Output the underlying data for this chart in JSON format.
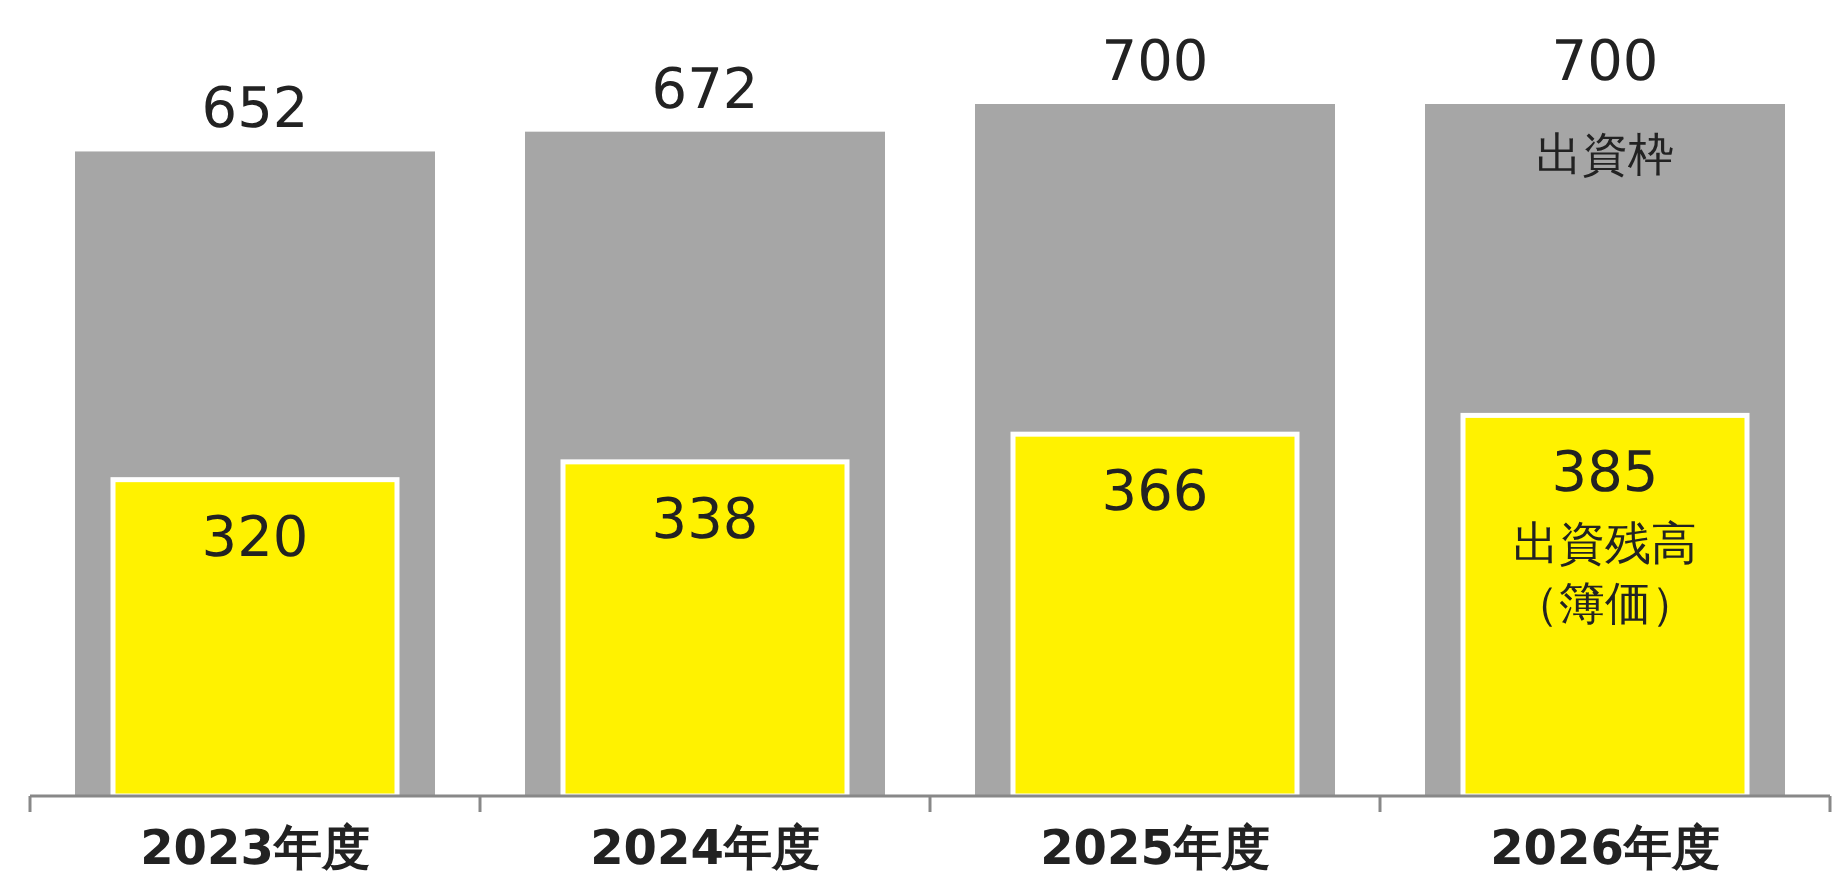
{
  "chart_data": {
    "type": "bar",
    "categories": [
      "2023年度",
      "2024年度",
      "2025年度",
      "2026年度"
    ],
    "series": [
      {
        "name": "出資枠",
        "color": "#a6a6a6",
        "values": [
          652,
          672,
          700,
          700
        ]
      },
      {
        "name": "出資残高（簿価）",
        "color": "#fff200",
        "values": [
          320,
          338,
          366,
          385
        ]
      }
    ],
    "ylim": [
      0,
      700
    ],
    "data_labels": true
  }
}
